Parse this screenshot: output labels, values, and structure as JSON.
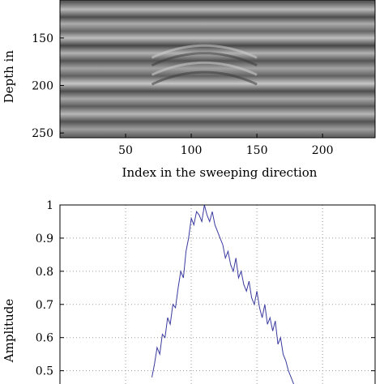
{
  "chart_data": [
    {
      "type": "heatmap",
      "xlabel": "Index in the sweeping direction",
      "ylabel": "Depth in",
      "xlim": [
        0,
        240
      ],
      "ylim": [
        255,
        110
      ],
      "xticks": [
        "50",
        "100",
        "150",
        "200"
      ],
      "yticks": [
        "150",
        "200",
        "250"
      ],
      "colormap": "gray",
      "bands": [
        {
          "depth": 112,
          "intensity": 0.35
        },
        {
          "depth": 120,
          "intensity": 0.72
        },
        {
          "depth": 128,
          "intensity": 0.3
        },
        {
          "depth": 135,
          "intensity": 0.68
        },
        {
          "depth": 143,
          "intensity": 0.4
        },
        {
          "depth": 150,
          "intensity": 0.75
        },
        {
          "depth": 158,
          "intensity": 0.28
        },
        {
          "depth": 166,
          "intensity": 0.7
        },
        {
          "depth": 174,
          "intensity": 0.33
        },
        {
          "depth": 182,
          "intensity": 0.64
        },
        {
          "depth": 190,
          "intensity": 0.38
        },
        {
          "depth": 198,
          "intensity": 0.78
        },
        {
          "depth": 206,
          "intensity": 0.3
        },
        {
          "depth": 214,
          "intensity": 0.66
        },
        {
          "depth": 222,
          "intensity": 0.36
        },
        {
          "depth": 230,
          "intensity": 0.72
        },
        {
          "depth": 238,
          "intensity": 0.32
        },
        {
          "depth": 246,
          "intensity": 0.62
        },
        {
          "depth": 253,
          "intensity": 0.4
        }
      ],
      "hyperbola": {
        "apex_index": 110,
        "apex_depth": 176
      }
    },
    {
      "type": "line",
      "xlabel": "",
      "ylabel": "Amplitude",
      "xlim": [
        0,
        240
      ],
      "ylim": [
        0.46,
        1.0
      ],
      "yticks": [
        "1",
        "0.9",
        "0.8",
        "0.7",
        "0.6",
        "0.5"
      ],
      "grid": true,
      "line_color": "#3a3aa0",
      "series": [
        {
          "x": [
            70,
            72,
            74,
            76,
            78,
            80,
            82,
            84,
            86,
            88,
            90,
            92,
            94,
            96,
            98,
            100,
            102,
            104,
            106,
            108,
            110,
            112,
            114,
            116,
            118,
            120,
            122,
            124,
            126,
            128,
            130,
            132,
            134,
            136,
            138,
            140,
            142,
            144,
            146,
            148,
            150,
            152,
            154,
            156,
            158,
            160,
            162,
            164,
            166,
            168,
            170,
            172,
            174,
            176,
            178,
            180
          ],
          "y": [
            0.48,
            0.52,
            0.57,
            0.55,
            0.61,
            0.6,
            0.66,
            0.64,
            0.7,
            0.69,
            0.75,
            0.8,
            0.78,
            0.86,
            0.9,
            0.96,
            0.94,
            0.98,
            0.97,
            0.95,
            1.0,
            0.97,
            0.95,
            0.98,
            0.94,
            0.92,
            0.9,
            0.88,
            0.84,
            0.86,
            0.82,
            0.8,
            0.84,
            0.78,
            0.8,
            0.76,
            0.74,
            0.77,
            0.72,
            0.7,
            0.74,
            0.69,
            0.66,
            0.7,
            0.64,
            0.66,
            0.62,
            0.65,
            0.58,
            0.6,
            0.55,
            0.53,
            0.5,
            0.48,
            0.46,
            0.45
          ]
        }
      ]
    }
  ]
}
